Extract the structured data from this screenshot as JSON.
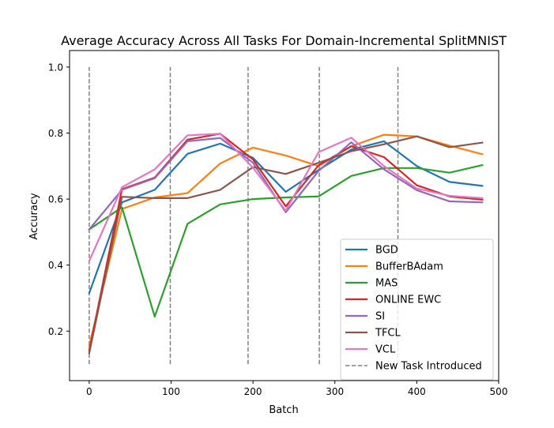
{
  "chart_data": {
    "type": "line",
    "title": "Average Accuracy Across All Tasks For Domain-Incremental SplitMNIST",
    "xlabel": "Batch",
    "ylabel": "Accuracy",
    "xlim": [
      -24,
      500
    ],
    "ylim": [
      0.05,
      1.05
    ],
    "xticks": [
      0,
      100,
      200,
      300,
      400,
      500
    ],
    "yticks": [
      0.2,
      0.4,
      0.6,
      0.8,
      1.0
    ],
    "x": [
      0,
      40,
      80,
      120,
      160,
      200,
      240,
      280,
      320,
      360,
      400,
      440,
      480
    ],
    "series": [
      {
        "name": "BGD",
        "color": "#1f77b4",
        "values": [
          0.315,
          0.59,
          0.628,
          0.737,
          0.768,
          0.725,
          0.622,
          0.688,
          0.75,
          0.775,
          0.7,
          0.652,
          0.64
        ]
      },
      {
        "name": "BufferBAdam",
        "color": "#ff7f0e",
        "values": [
          0.155,
          0.57,
          0.605,
          0.618,
          0.708,
          0.756,
          0.732,
          0.7,
          0.76,
          0.795,
          0.79,
          0.762,
          0.736
        ]
      },
      {
        "name": "MAS",
        "color": "#2ca02c",
        "values": [
          0.508,
          0.575,
          0.244,
          0.525,
          0.584,
          0.6,
          0.605,
          0.608,
          0.67,
          0.694,
          0.694,
          0.68,
          0.703
        ]
      },
      {
        "name": "ONLINE EWC",
        "color": "#d62728",
        "values": [
          0.14,
          0.63,
          0.665,
          0.78,
          0.798,
          0.72,
          0.578,
          0.702,
          0.76,
          0.727,
          0.642,
          0.608,
          0.598
        ]
      },
      {
        "name": "SI",
        "color": "#9467bd",
        "values": [
          0.508,
          0.628,
          0.663,
          0.775,
          0.785,
          0.71,
          0.56,
          0.685,
          0.772,
          0.69,
          0.627,
          0.593,
          0.59
        ]
      },
      {
        "name": "TFCL",
        "color": "#8c564b",
        "values": [
          0.133,
          0.607,
          0.603,
          0.603,
          0.628,
          0.697,
          0.676,
          0.71,
          0.745,
          0.766,
          0.79,
          0.757,
          0.771
        ]
      },
      {
        "name": "VCL",
        "color": "#e377c2",
        "values": [
          0.412,
          0.636,
          0.69,
          0.793,
          0.798,
          0.695,
          0.565,
          0.742,
          0.786,
          0.7,
          0.632,
          0.61,
          0.603
        ]
      }
    ],
    "vlines": {
      "label": "New Task Introduced",
      "color": "#808080",
      "x": [
        0,
        99,
        194,
        281,
        377
      ],
      "y_range": [
        0.1,
        1.0
      ]
    },
    "legend_position": "lower-right",
    "grid": false
  }
}
